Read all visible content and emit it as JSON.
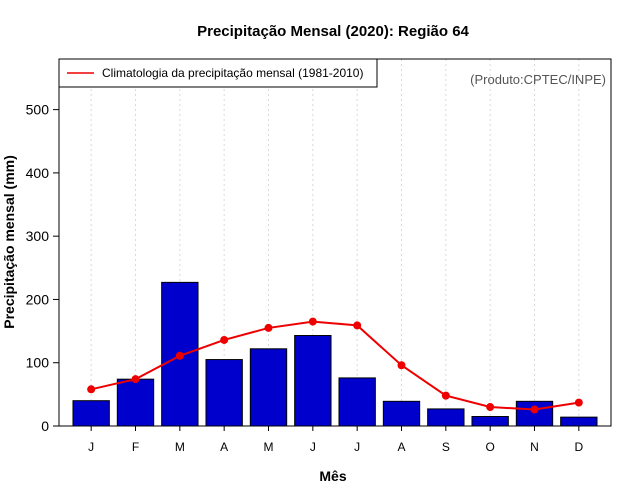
{
  "chart_data": {
    "type": "bar",
    "title": "Precipitação Mensal (2020): Região 64",
    "xlabel": "Mês",
    "ylabel": "Precipitação mensal (mm)",
    "ylim": [
      0,
      580
    ],
    "yticks": [
      0,
      100,
      200,
      300,
      400,
      500
    ],
    "grid": "vertical dotted",
    "categories": [
      "J",
      "F",
      "M",
      "A",
      "M",
      "J",
      "J",
      "A",
      "S",
      "O",
      "N",
      "D"
    ],
    "series": [
      {
        "name": "Precipitação mensal (2020)",
        "type": "bar",
        "color": "#0000CD",
        "values": [
          40,
          74,
          227,
          105,
          122,
          143,
          76,
          39,
          27,
          15,
          39,
          14
        ]
      },
      {
        "name": "Climatologia da precipitação mensal (1981-2010)",
        "type": "line",
        "color": "#EE0000",
        "values": [
          58,
          74,
          111,
          136,
          155,
          165,
          159,
          96,
          48,
          30,
          26,
          37
        ]
      }
    ],
    "legend": {
      "position": "top-left",
      "entries": [
        "Climatologia da precipitação mensal (1981-2010)"
      ]
    },
    "credit": "(Produto:CPTEC/INPE)"
  }
}
